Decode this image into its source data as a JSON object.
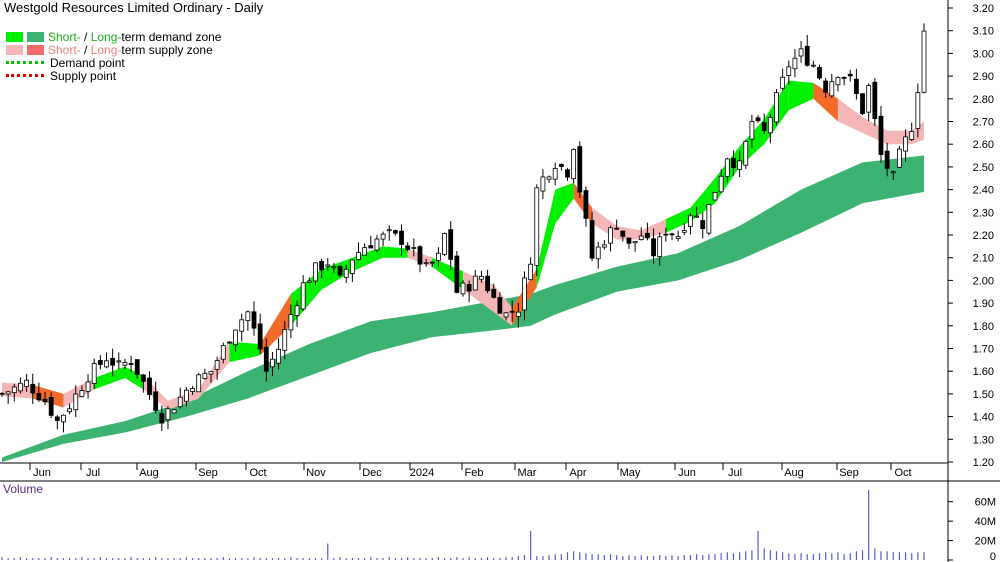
{
  "title": "Westgold Resources Limited Ordinary - Daily",
  "legend": {
    "demand_short": "Short-",
    "demand_sep": " / ",
    "demand_long": "Long-",
    "demand_rest": "term demand zone",
    "supply_short": "Short-",
    "supply_sep": " / ",
    "supply_long": "Long-",
    "supply_rest": "term supply zone",
    "demand_point": "Demand point",
    "supply_point": "Supply point"
  },
  "colors": {
    "short_demand": "#00f000",
    "long_demand": "#3cb371",
    "short_supply": "#f4b6b6",
    "long_supply": "#f36b2b",
    "volume": "#5a5ad0",
    "volume_label": "#5a2d82",
    "legend_green_text": "#1faa1f",
    "legend_red_text": "#f08080"
  },
  "chart_data": {
    "type": "candlestick",
    "title": "Westgold Resources Limited Ordinary - Daily",
    "price_axis": {
      "ticks": [
        "3.20",
        "3.10",
        "3.00",
        "2.90",
        "2.80",
        "2.70",
        "2.60",
        "2.50",
        "2.40",
        "2.30",
        "2.20",
        "2.10",
        "2.00",
        "1.90",
        "1.80",
        "1.70",
        "1.60",
        "1.50",
        "1.40",
        "1.30",
        "1.20"
      ],
      "range": [
        1.15,
        3.25
      ]
    },
    "x_axis": {
      "labels": [
        "Jun",
        "Jul",
        "Aug",
        "Sep",
        "Oct",
        "Nov",
        "Dec",
        "2024",
        "Feb",
        "Mar",
        "Apr",
        "May",
        "Jun",
        "Jul",
        "Aug",
        "Sep",
        "Oct"
      ]
    },
    "close_series": [
      [
        0,
        1.5
      ],
      [
        4,
        1.55
      ],
      [
        7,
        1.47
      ],
      [
        9,
        1.38
      ],
      [
        11,
        1.45
      ],
      [
        14,
        1.58
      ],
      [
        17,
        1.66
      ],
      [
        19,
        1.62
      ],
      [
        21,
        1.65
      ],
      [
        23,
        1.55
      ],
      [
        25,
        1.45
      ],
      [
        26,
        1.4
      ],
      [
        28,
        1.45
      ],
      [
        31,
        1.55
      ],
      [
        34,
        1.6
      ],
      [
        36,
        1.7
      ],
      [
        38,
        1.8
      ],
      [
        40,
        1.86
      ],
      [
        42,
        1.7
      ],
      [
        43,
        1.6
      ],
      [
        45,
        1.7
      ],
      [
        47,
        1.85
      ],
      [
        49,
        1.98
      ],
      [
        51,
        2.05
      ],
      [
        53,
        2.08
      ],
      [
        55,
        2.0
      ],
      [
        57,
        2.1
      ],
      [
        59,
        2.15
      ],
      [
        61,
        2.18
      ],
      [
        63,
        2.2
      ],
      [
        65,
        2.18
      ],
      [
        67,
        2.12
      ],
      [
        69,
        2.05
      ],
      [
        71,
        2.1
      ],
      [
        72,
        2.2
      ],
      [
        73,
        2.1
      ],
      [
        74,
        1.95
      ],
      [
        76,
        1.98
      ],
      [
        78,
        2.02
      ],
      [
        80,
        1.92
      ],
      [
        82,
        1.85
      ],
      [
        84,
        1.88
      ],
      [
        86,
        2.1
      ],
      [
        87,
        2.4
      ],
      [
        88,
        2.45
      ],
      [
        90,
        2.52
      ],
      [
        92,
        2.48
      ],
      [
        93,
        2.6
      ],
      [
        94,
        2.4
      ],
      [
        96,
        2.1
      ],
      [
        98,
        2.18
      ],
      [
        100,
        2.25
      ],
      [
        102,
        2.15
      ],
      [
        104,
        2.2
      ],
      [
        106,
        2.12
      ],
      [
        108,
        2.22
      ],
      [
        110,
        2.2
      ],
      [
        112,
        2.3
      ],
      [
        114,
        2.25
      ],
      [
        116,
        2.4
      ],
      [
        118,
        2.55
      ],
      [
        120,
        2.5
      ],
      [
        122,
        2.7
      ],
      [
        124,
        2.65
      ],
      [
        126,
        2.8
      ],
      [
        128,
        2.95
      ],
      [
        130,
        3.0
      ],
      [
        132,
        2.95
      ],
      [
        134,
        2.85
      ],
      [
        136,
        2.92
      ],
      [
        138,
        2.88
      ],
      [
        140,
        2.75
      ],
      [
        141,
        2.85
      ],
      [
        142,
        2.7
      ],
      [
        143,
        2.55
      ],
      [
        145,
        2.45
      ],
      [
        146,
        2.55
      ],
      [
        148,
        2.68
      ],
      [
        149,
        2.85
      ],
      [
        150,
        3.1
      ]
    ],
    "long_demand_zone": [
      [
        0,
        1.22,
        1.2
      ],
      [
        10,
        1.32,
        1.28
      ],
      [
        20,
        1.38,
        1.33
      ],
      [
        30,
        1.47,
        1.4
      ],
      [
        40,
        1.6,
        1.48
      ],
      [
        50,
        1.72,
        1.58
      ],
      [
        60,
        1.82,
        1.68
      ],
      [
        70,
        1.86,
        1.75
      ],
      [
        80,
        1.91,
        1.78
      ],
      [
        86,
        1.94,
        1.8
      ],
      [
        90,
        1.98,
        1.85
      ],
      [
        100,
        2.06,
        1.95
      ],
      [
        110,
        2.12,
        2.0
      ],
      [
        120,
        2.24,
        2.09
      ],
      [
        130,
        2.4,
        2.21
      ],
      [
        140,
        2.52,
        2.34
      ],
      [
        150,
        2.55,
        2.39
      ]
    ],
    "short_zone": [
      [
        0,
        1.55,
        1.49,
        "supply"
      ],
      [
        5,
        1.54,
        1.48,
        "long"
      ],
      [
        10,
        1.5,
        1.44,
        "supply"
      ],
      [
        15,
        1.57,
        1.52,
        "demand"
      ],
      [
        20,
        1.62,
        1.57,
        "demand"
      ],
      [
        23,
        1.58,
        1.52,
        "supply"
      ],
      [
        27,
        1.47,
        1.43,
        "supply"
      ],
      [
        32,
        1.52,
        1.48,
        "supply"
      ],
      [
        37,
        1.73,
        1.64,
        "demand"
      ],
      [
        42,
        1.72,
        1.67,
        "long"
      ],
      [
        47,
        1.94,
        1.8,
        "demand"
      ],
      [
        52,
        2.05,
        1.96,
        "demand"
      ],
      [
        57,
        2.1,
        2.04,
        "demand"
      ],
      [
        62,
        2.15,
        2.1,
        "demand"
      ],
      [
        66,
        2.14,
        2.1,
        "supply"
      ],
      [
        70,
        2.1,
        2.06,
        "demand"
      ],
      [
        75,
        2.04,
        1.96,
        "supply"
      ],
      [
        80,
        1.98,
        1.86,
        "supply"
      ],
      [
        83,
        1.88,
        1.8,
        "long"
      ],
      [
        87,
        2.05,
        1.97,
        "demand"
      ],
      [
        90,
        2.4,
        2.25,
        "demand"
      ],
      [
        93,
        2.43,
        2.36,
        "long"
      ],
      [
        96,
        2.32,
        2.25,
        "supply"
      ],
      [
        100,
        2.24,
        2.18,
        "supply"
      ],
      [
        104,
        2.22,
        2.18,
        "supply"
      ],
      [
        108,
        2.27,
        2.21,
        "demand"
      ],
      [
        112,
        2.32,
        2.26,
        "demand"
      ],
      [
        116,
        2.45,
        2.34,
        "demand"
      ],
      [
        120,
        2.59,
        2.5,
        "demand"
      ],
      [
        124,
        2.71,
        2.6,
        "demand"
      ],
      [
        128,
        2.88,
        2.75,
        "demand"
      ],
      [
        132,
        2.87,
        2.8,
        "long"
      ],
      [
        136,
        2.8,
        2.7,
        "supply"
      ],
      [
        140,
        2.72,
        2.65,
        "supply"
      ],
      [
        144,
        2.66,
        2.6,
        "supply"
      ],
      [
        148,
        2.66,
        2.6,
        "supply"
      ],
      [
        150,
        2.7,
        2.62,
        "supply"
      ]
    ],
    "volume_axis": {
      "ticks": [
        "60M",
        "40M",
        "20M",
        "0"
      ],
      "max": 70
    },
    "volume": [
      3,
      2,
      2,
      3,
      2,
      2,
      2,
      2,
      3,
      2,
      2,
      2,
      2,
      3,
      2,
      2,
      3,
      2,
      2,
      2,
      2,
      3,
      2,
      2,
      2,
      3,
      2,
      2,
      2,
      2,
      3,
      2,
      2,
      2,
      2,
      2,
      3,
      2,
      2,
      2,
      2,
      3,
      2,
      2,
      2,
      2,
      2,
      3,
      2,
      2,
      2,
      2,
      2,
      17,
      2,
      3,
      2,
      2,
      2,
      2,
      3,
      2,
      2,
      3,
      2,
      2,
      3,
      2,
      2,
      2,
      2,
      3,
      2,
      2,
      3,
      2,
      3,
      2,
      2,
      3,
      2,
      2,
      3,
      3,
      4,
      5,
      30,
      4,
      4,
      5,
      6,
      6,
      8,
      9,
      8,
      7,
      6,
      6,
      5,
      6,
      5,
      4,
      5,
      4,
      5,
      4,
      4,
      5,
      4,
      5,
      4,
      5,
      5,
      6,
      5,
      6,
      6,
      7,
      8,
      7,
      8,
      9,
      10,
      30,
      12,
      10,
      9,
      8,
      7,
      6,
      7,
      6,
      6,
      7,
      8,
      7,
      8,
      6,
      7,
      9,
      10,
      72,
      12,
      9,
      9,
      8,
      8,
      8,
      7,
      8,
      8
    ]
  },
  "volume_label": "Volume"
}
